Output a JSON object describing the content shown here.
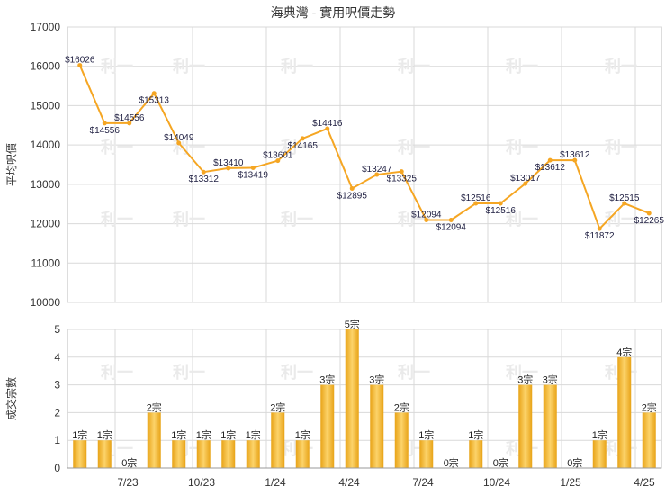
{
  "title": "海典灣 - 實用呎價走勢",
  "watermark": "利一",
  "colors": {
    "line": "#F5A623",
    "bar_light": "#FCD36A",
    "bar_dark": "#E8A317"
  },
  "chart_data": [
    {
      "type": "line",
      "ylabel": "平均呎價",
      "ylim": [
        10000,
        17000
      ],
      "yticks": [
        10000,
        11000,
        12000,
        13000,
        14000,
        15000,
        16000,
        17000
      ],
      "x_tick_labels": [
        "7/23",
        "10/23",
        "1/24",
        "4/24",
        "7/24",
        "10/24",
        "1/25",
        "4/25"
      ],
      "point_labels": [
        "$16026",
        "$14556",
        "$14556",
        "$15313",
        "$14049",
        "$13312",
        "$13410",
        "$13419",
        "$13601",
        "$14165",
        "$14416",
        "$12895",
        "$13247",
        "$13325",
        "$12094",
        "$12094",
        "$12516",
        "$12516",
        "$13017",
        "$13612",
        "$13612",
        "$11872",
        "$12515",
        "$12265"
      ],
      "values": [
        16026,
        14556,
        14556,
        15313,
        14049,
        13312,
        13410,
        13419,
        13601,
        14165,
        14416,
        12895,
        13247,
        13325,
        12094,
        12094,
        12516,
        12516,
        13017,
        13612,
        13612,
        11872,
        12515,
        12265
      ]
    },
    {
      "type": "bar",
      "ylabel": "成交宗數",
      "ylim": [
        0,
        5
      ],
      "yticks": [
        0,
        1,
        2,
        3,
        4,
        5
      ],
      "x_tick_labels": [
        "7/23",
        "10/23",
        "1/24",
        "4/24",
        "7/24",
        "10/24",
        "1/25",
        "4/25"
      ],
      "bar_labels": [
        "1宗",
        "1宗",
        "0宗",
        "2宗",
        "1宗",
        "1宗",
        "1宗",
        "1宗",
        "2宗",
        "1宗",
        "3宗",
        "5宗",
        "3宗",
        "2宗",
        "1宗",
        "0宗",
        "1宗",
        "0宗",
        "3宗",
        "3宗",
        "0宗",
        "1宗",
        "4宗",
        "2宗"
      ],
      "values": [
        1,
        1,
        0,
        2,
        1,
        1,
        1,
        1,
        2,
        1,
        3,
        5,
        3,
        2,
        1,
        0,
        1,
        0,
        3,
        3,
        0,
        1,
        4,
        2
      ]
    }
  ]
}
